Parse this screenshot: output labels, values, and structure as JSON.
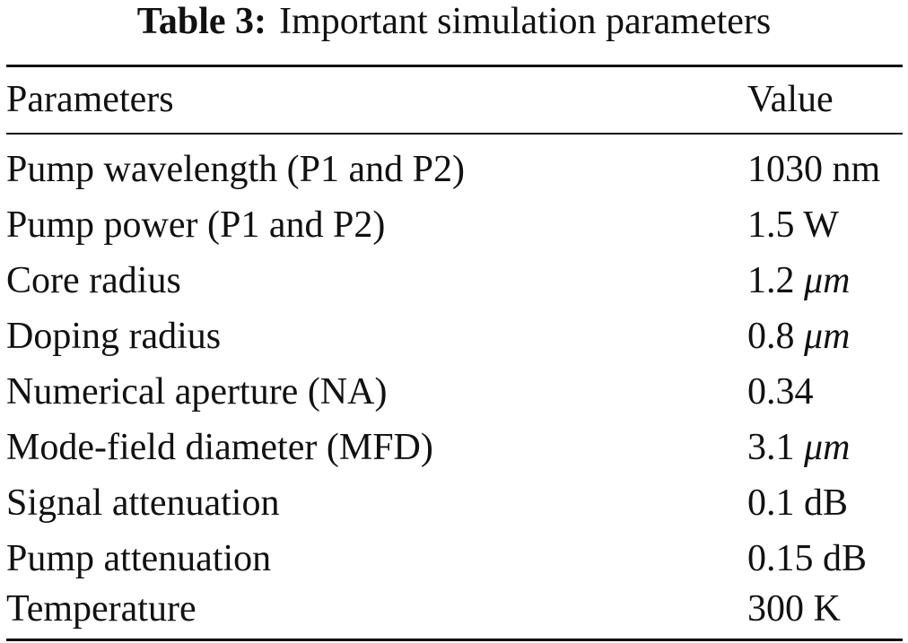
{
  "caption": {
    "label": "Table 3:",
    "text": "Important simulation parameters"
  },
  "table": {
    "headers": [
      "Parameters",
      "Value"
    ],
    "rows": [
      {
        "parameter": "Pump wavelength (P1 and P2)",
        "value": "1030 nm"
      },
      {
        "parameter": "Pump power (P1 and P2)",
        "value": "1.5 W"
      },
      {
        "parameter": "Core radius",
        "value": "1.2",
        "unit": "μm"
      },
      {
        "parameter": "Doping radius",
        "value": "0.8",
        "unit": "μm"
      },
      {
        "parameter": "Numerical aperture (NA)",
        "value": "0.34"
      },
      {
        "parameter": "Mode-field diameter (MFD)",
        "value": "3.1",
        "unit": "μm"
      },
      {
        "parameter": "Signal attenuation",
        "value": "0.1 dB"
      },
      {
        "parameter": "Pump attenuation",
        "value": "0.15 dB"
      },
      {
        "parameter": "Temperature",
        "value": "300 K"
      }
    ]
  }
}
